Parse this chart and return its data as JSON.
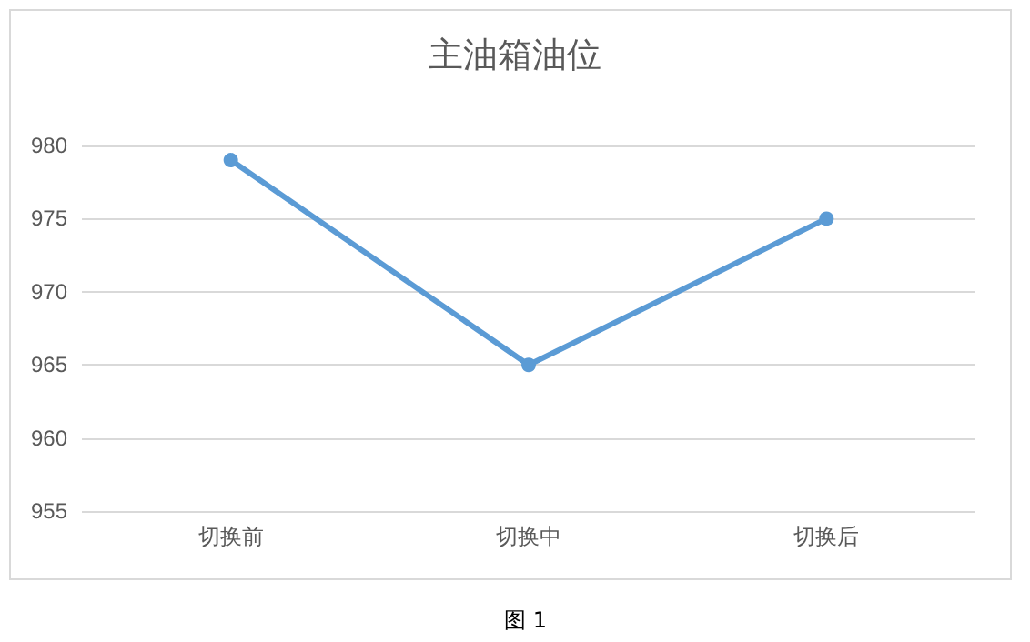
{
  "chart_data": {
    "type": "line",
    "title": "主油箱油位",
    "categories": [
      "切换前",
      "切换中",
      "切换后"
    ],
    "series": [
      {
        "color": "#5b9bd5",
        "values": [
          979,
          965,
          975
        ]
      }
    ],
    "ylim": [
      955,
      980
    ],
    "yticks": [
      955,
      960,
      965,
      970,
      975,
      980
    ],
    "grid": "y",
    "marker": "circle",
    "line_style": "solid",
    "annotations": [
      "图 1"
    ]
  }
}
